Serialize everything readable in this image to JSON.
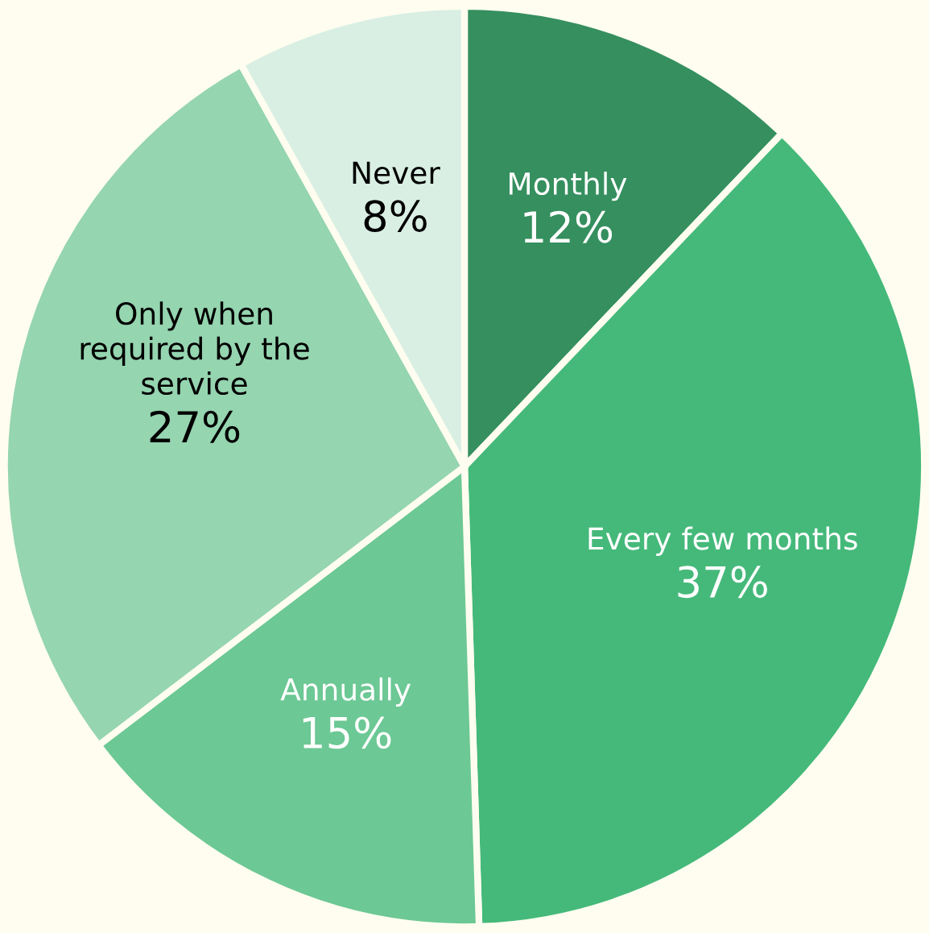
{
  "chart_data": {
    "type": "pie",
    "categories": [
      "Monthly",
      "Every few months",
      "Annually",
      "Only when required by the service",
      "Never"
    ],
    "values": [
      12,
      37,
      15,
      27,
      8
    ],
    "value_labels": [
      "12%",
      "37%",
      "15%",
      "27%",
      "8%"
    ],
    "colors": [
      "#358f5e",
      "#45b97a",
      "#6cc894",
      "#95d5b0",
      "#d9efe3"
    ],
    "legend": false
  }
}
